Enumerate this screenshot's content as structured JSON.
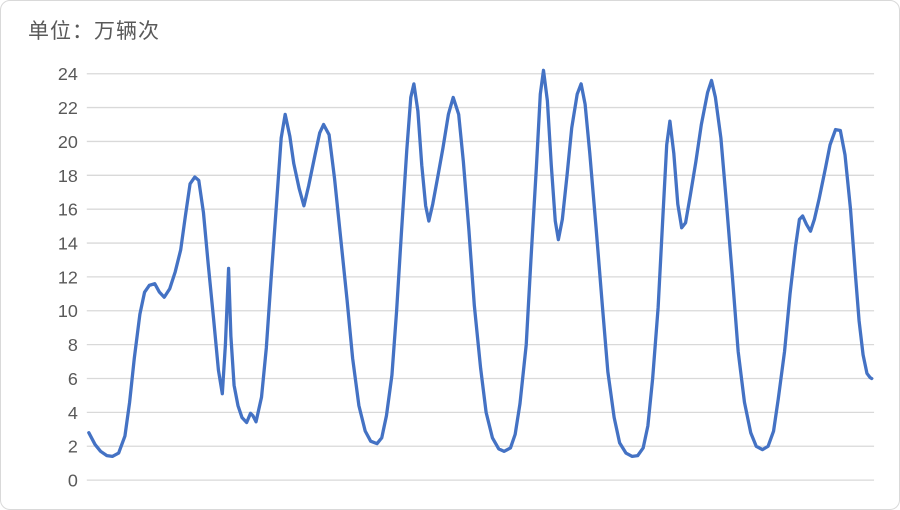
{
  "chart": {
    "unit_label": "单位：万辆次"
  },
  "colors": {
    "line": "#4472C4",
    "grid": "#D9D9D9",
    "tick_label": "#595959",
    "border": "#D9D9D9",
    "background": "#FFFFFF"
  },
  "chart_data": {
    "type": "line",
    "title": "单位：万辆次",
    "xlabel": "",
    "ylabel": "",
    "ylim": [
      0,
      24
    ],
    "ytick_interval": 2,
    "yticks": [
      24,
      22,
      20,
      18,
      16,
      14,
      12,
      10,
      8,
      6,
      4,
      2,
      0
    ],
    "x_axis_labels_visible": false,
    "x_unit": "relative position 0-100 (no x tick labels shown)",
    "grid": "horizontal",
    "legend": "none",
    "points": [
      [
        0,
        2.8
      ],
      [
        0.8,
        2.1
      ],
      [
        1.5,
        1.7
      ],
      [
        2.3,
        1.45
      ],
      [
        3,
        1.4
      ],
      [
        3.8,
        1.6
      ],
      [
        4.6,
        2.6
      ],
      [
        5.2,
        4.6
      ],
      [
        5.8,
        7.2
      ],
      [
        6.5,
        9.8
      ],
      [
        7.1,
        11.1
      ],
      [
        7.7,
        11.5
      ],
      [
        8.4,
        11.6
      ],
      [
        9,
        11.1
      ],
      [
        9.6,
        10.8
      ],
      [
        10.3,
        11.3
      ],
      [
        11,
        12.3
      ],
      [
        11.7,
        13.6
      ],
      [
        12.3,
        15.6
      ],
      [
        12.9,
        17.5
      ],
      [
        13.5,
        17.9
      ],
      [
        14,
        17.7
      ],
      [
        14.6,
        15.8
      ],
      [
        15.2,
        12.8
      ],
      [
        15.9,
        9.5
      ],
      [
        16.5,
        6.5
      ],
      [
        17,
        5.1
      ],
      [
        17.4,
        8
      ],
      [
        17.8,
        12.5
      ],
      [
        18.1,
        8.5
      ],
      [
        18.5,
        5.6
      ],
      [
        19,
        4.4
      ],
      [
        19.5,
        3.7
      ],
      [
        20.1,
        3.4
      ],
      [
        20.6,
        3.95
      ],
      [
        20.9,
        3.8
      ],
      [
        21.3,
        3.45
      ],
      [
        22,
        4.9
      ],
      [
        22.6,
        7.8
      ],
      [
        23.2,
        11.8
      ],
      [
        23.9,
        16.3
      ],
      [
        24.5,
        20.2
      ],
      [
        25,
        21.6
      ],
      [
        25.6,
        20.3
      ],
      [
        26.1,
        18.7
      ],
      [
        26.8,
        17.2
      ],
      [
        27.4,
        16.2
      ],
      [
        28,
        17.4
      ],
      [
        28.8,
        19.2
      ],
      [
        29.4,
        20.5
      ],
      [
        29.9,
        21
      ],
      [
        30.6,
        20.4
      ],
      [
        31.3,
        17.8
      ],
      [
        32.1,
        14.2
      ],
      [
        32.9,
        10.6
      ],
      [
        33.6,
        7.2
      ],
      [
        34.4,
        4.4
      ],
      [
        35.2,
        2.9
      ],
      [
        35.9,
        2.3
      ],
      [
        36.7,
        2.15
      ],
      [
        37.3,
        2.5
      ],
      [
        37.9,
        3.8
      ],
      [
        38.6,
        6.2
      ],
      [
        39.2,
        10
      ],
      [
        39.8,
        14.5
      ],
      [
        40.5,
        19.5
      ],
      [
        41,
        22.6
      ],
      [
        41.4,
        23.4
      ],
      [
        41.9,
        21.8
      ],
      [
        42.4,
        18.6
      ],
      [
        42.9,
        16.2
      ],
      [
        43.3,
        15.3
      ],
      [
        43.8,
        16.3
      ],
      [
        44.4,
        17.8
      ],
      [
        45.1,
        19.6
      ],
      [
        45.8,
        21.6
      ],
      [
        46.4,
        22.6
      ],
      [
        47.1,
        21.6
      ],
      [
        47.7,
        18.8
      ],
      [
        48.4,
        14.8
      ],
      [
        49.1,
        10.3
      ],
      [
        49.9,
        6.6
      ],
      [
        50.6,
        4
      ],
      [
        51.4,
        2.5
      ],
      [
        52.2,
        1.85
      ],
      [
        52.9,
        1.7
      ],
      [
        53.7,
        1.9
      ],
      [
        54.3,
        2.7
      ],
      [
        54.9,
        4.5
      ],
      [
        55.7,
        8
      ],
      [
        56.3,
        13
      ],
      [
        57,
        18.5
      ],
      [
        57.5,
        22.8
      ],
      [
        57.9,
        24.2
      ],
      [
        58.4,
        22.4
      ],
      [
        58.9,
        18.6
      ],
      [
        59.4,
        15.3
      ],
      [
        59.8,
        14.2
      ],
      [
        60.3,
        15.4
      ],
      [
        60.9,
        18
      ],
      [
        61.5,
        20.8
      ],
      [
        62.2,
        22.8
      ],
      [
        62.7,
        23.4
      ],
      [
        63.2,
        22.2
      ],
      [
        63.8,
        19.3
      ],
      [
        64.6,
        14.9
      ],
      [
        65.4,
        10.3
      ],
      [
        66.1,
        6.4
      ],
      [
        66.9,
        3.7
      ],
      [
        67.6,
        2.2
      ],
      [
        68.4,
        1.6
      ],
      [
        69.2,
        1.4
      ],
      [
        69.9,
        1.45
      ],
      [
        70.6,
        1.9
      ],
      [
        71.2,
        3.2
      ],
      [
        71.8,
        6
      ],
      [
        72.5,
        10.2
      ],
      [
        73.1,
        15.5
      ],
      [
        73.6,
        19.8
      ],
      [
        74,
        21.2
      ],
      [
        74.5,
        19.3
      ],
      [
        75,
        16.3
      ],
      [
        75.5,
        14.9
      ],
      [
        76,
        15.2
      ],
      [
        76.6,
        16.8
      ],
      [
        77.3,
        18.8
      ],
      [
        78,
        21
      ],
      [
        78.8,
        22.9
      ],
      [
        79.3,
        23.6
      ],
      [
        79.8,
        22.6
      ],
      [
        80.5,
        20.2
      ],
      [
        81.2,
        16.4
      ],
      [
        82,
        11.8
      ],
      [
        82.7,
        7.6
      ],
      [
        83.5,
        4.6
      ],
      [
        84.3,
        2.8
      ],
      [
        85,
        2
      ],
      [
        85.8,
        1.8
      ],
      [
        86.5,
        2
      ],
      [
        87.2,
        2.9
      ],
      [
        87.8,
        4.8
      ],
      [
        88.6,
        7.6
      ],
      [
        89.3,
        11
      ],
      [
        90,
        13.8
      ],
      [
        90.5,
        15.4
      ],
      [
        90.9,
        15.6
      ],
      [
        91.4,
        15.1
      ],
      [
        91.9,
        14.7
      ],
      [
        92.4,
        15.4
      ],
      [
        93,
        16.6
      ],
      [
        93.8,
        18.4
      ],
      [
        94.4,
        19.8
      ],
      [
        95.1,
        20.7
      ],
      [
        95.7,
        20.65
      ],
      [
        96.3,
        19.2
      ],
      [
        97,
        16
      ],
      [
        97.6,
        12.3
      ],
      [
        98.1,
        9.4
      ],
      [
        98.6,
        7.4
      ],
      [
        99.1,
        6.3
      ],
      [
        99.5,
        6.05
      ],
      [
        99.7,
        6
      ]
    ]
  }
}
